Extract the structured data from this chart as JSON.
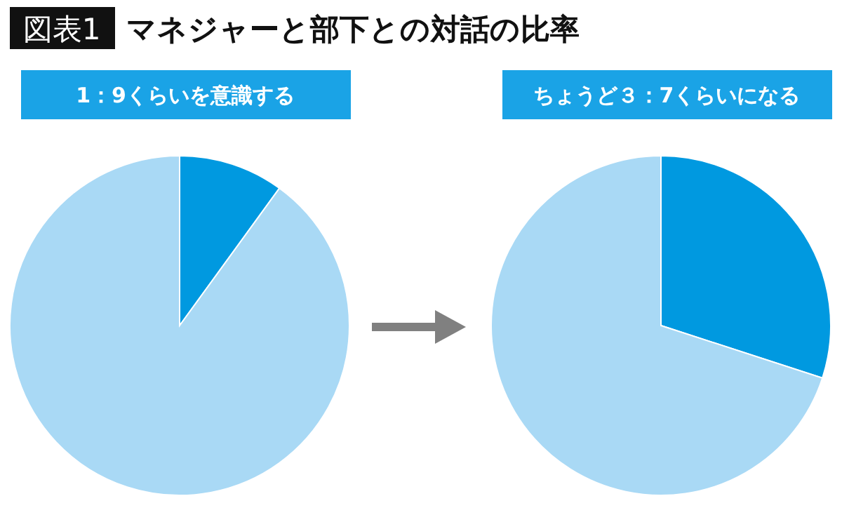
{
  "chart_data": [
    {
      "type": "pie",
      "title": "1：9くらいを意識する",
      "categories": [
        null,
        null
      ],
      "values": [
        10,
        90
      ],
      "colors": [
        "#0099e0",
        "#a9d9f5"
      ],
      "annotations": [
        "図表1",
        "マネジャーと部下との対話の比率"
      ]
    },
    {
      "type": "pie",
      "title": "ちょうど３：7くらいになる",
      "categories": [
        null,
        null
      ],
      "values": [
        30,
        70
      ],
      "colors": [
        "#0099e0",
        "#a9d9f5"
      ]
    }
  ]
}
